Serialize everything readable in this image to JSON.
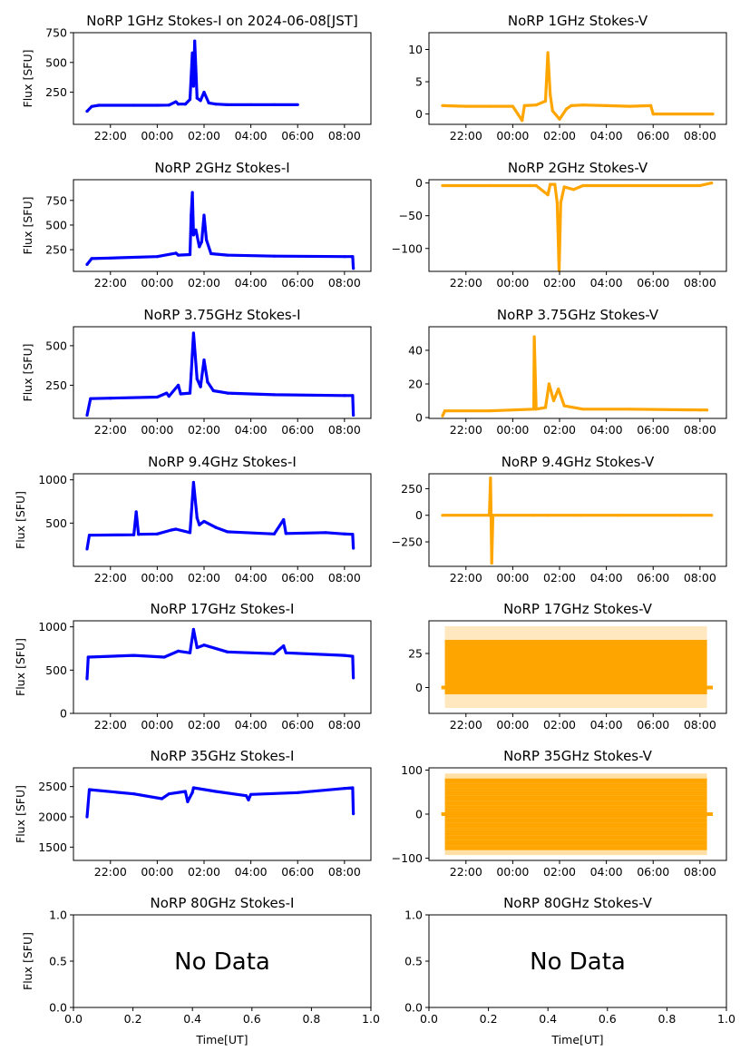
{
  "figure": {
    "date_label": "2024-06-08[JST]",
    "xlabel": "Time[UT]",
    "ylabel": "Flux [SFU]",
    "no_data_text": "No Data",
    "colors": {
      "stokes_i": "#0000ff",
      "stokes_v": "#ffa500",
      "axes": "#000000",
      "background": "#ffffff"
    }
  },
  "chart_data": [
    {
      "type": "scatter",
      "id": "i1",
      "title": "NoRP 1GHz Stokes-I on 2024-06-08[JST]",
      "ylabel": "Flux [SFU]",
      "xlabel": "",
      "xlim": [
        -3.58,
        9.13
      ],
      "ylim": [
        -20,
        750
      ],
      "yticks": [
        250,
        500,
        750
      ],
      "xticks": [
        "22:00",
        "00:00",
        "02:00",
        "04:00",
        "06:00",
        "08:00"
      ],
      "points": [
        [
          -3.0,
          90
        ],
        [
          -2.8,
          130
        ],
        [
          -2.5,
          140
        ],
        [
          -1,
          140
        ],
        [
          0,
          140
        ],
        [
          0.5,
          142
        ],
        [
          0.8,
          170
        ],
        [
          0.9,
          150
        ],
        [
          1.2,
          150
        ],
        [
          1.4,
          190
        ],
        [
          1.5,
          580
        ],
        [
          1.55,
          300
        ],
        [
          1.6,
          680
        ],
        [
          1.7,
          200
        ],
        [
          1.85,
          180
        ],
        [
          2.0,
          250
        ],
        [
          2.2,
          160
        ],
        [
          2.5,
          150
        ],
        [
          3,
          145
        ],
        [
          4,
          145
        ],
        [
          5,
          145
        ],
        [
          6.0,
          145
        ]
      ]
    },
    {
      "type": "scatter",
      "id": "v1",
      "title": "NoRP 1GHz Stokes-V",
      "ylabel": "",
      "xlabel": "",
      "xlim": [
        -3.58,
        9.13
      ],
      "ylim": [
        -1.6,
        12.6
      ],
      "yticks": [
        0,
        5,
        10
      ],
      "xticks": [
        "22:00",
        "00:00",
        "02:00",
        "04:00",
        "06:00",
        "08:00"
      ],
      "points": [
        [
          -3.0,
          1.3
        ],
        [
          -2,
          1.2
        ],
        [
          -1,
          1.2
        ],
        [
          0,
          1.2
        ],
        [
          0.4,
          -1
        ],
        [
          0.5,
          1.3
        ],
        [
          1.0,
          1.4
        ],
        [
          1.4,
          2
        ],
        [
          1.5,
          9.5
        ],
        [
          1.6,
          3
        ],
        [
          1.7,
          0.5
        ],
        [
          2.0,
          -0.8
        ],
        [
          2.3,
          0.8
        ],
        [
          2.5,
          1.3
        ],
        [
          3,
          1.4
        ],
        [
          4,
          1.3
        ],
        [
          5,
          1.2
        ],
        [
          5.9,
          1.3
        ],
        [
          6.0,
          0
        ],
        [
          8.55,
          0
        ]
      ]
    },
    {
      "type": "scatter",
      "id": "i2",
      "title": "NoRP 2GHz Stokes-I",
      "ylabel": "Flux [SFU]",
      "xlabel": "",
      "xlim": [
        -3.58,
        9.13
      ],
      "ylim": [
        30,
        960
      ],
      "yticks": [
        250,
        500,
        750
      ],
      "xticks": [
        "22:00",
        "00:00",
        "02:00",
        "04:00",
        "06:00",
        "08:00"
      ],
      "points": [
        [
          -3.0,
          100
        ],
        [
          -2.8,
          160
        ],
        [
          -2,
          165
        ],
        [
          0,
          180
        ],
        [
          0.8,
          215
        ],
        [
          0.9,
          195
        ],
        [
          1.4,
          200
        ],
        [
          1.45,
          600
        ],
        [
          1.5,
          830
        ],
        [
          1.55,
          400
        ],
        [
          1.65,
          450
        ],
        [
          1.8,
          280
        ],
        [
          1.9,
          330
        ],
        [
          2.0,
          600
        ],
        [
          2.1,
          350
        ],
        [
          2.3,
          210
        ],
        [
          3,
          195
        ],
        [
          5,
          185
        ],
        [
          8,
          180
        ],
        [
          8.35,
          180
        ],
        [
          8.38,
          60
        ]
      ]
    },
    {
      "type": "scatter",
      "id": "v2",
      "title": "NoRP 2GHz Stokes-V",
      "ylabel": "",
      "xlabel": "",
      "xlim": [
        -3.58,
        9.13
      ],
      "ylim": [
        -135,
        5
      ],
      "yticks": [
        0,
        -50,
        -100
      ],
      "xticks": [
        "22:00",
        "00:00",
        "02:00",
        "04:00",
        "06:00",
        "08:00"
      ],
      "points": [
        [
          -3.0,
          -4
        ],
        [
          -1,
          -4
        ],
        [
          1.0,
          -4
        ],
        [
          1.5,
          -18
        ],
        [
          1.6,
          -2
        ],
        [
          1.8,
          -2
        ],
        [
          1.9,
          -30
        ],
        [
          1.98,
          -135
        ],
        [
          2.05,
          -30
        ],
        [
          2.2,
          -6
        ],
        [
          2.6,
          -10
        ],
        [
          3,
          -4
        ],
        [
          5,
          -4
        ],
        [
          8,
          -4
        ],
        [
          8.5,
          0
        ]
      ]
    },
    {
      "type": "scatter",
      "id": "i3",
      "title": "NoRP 3.75GHz Stokes-I",
      "ylabel": "Flux [SFU]",
      "xlabel": "",
      "xlim": [
        -3.58,
        9.13
      ],
      "ylim": [
        40,
        620
      ],
      "yticks": [
        250,
        500
      ],
      "xticks": [
        "22:00",
        "00:00",
        "02:00",
        "04:00",
        "06:00",
        "08:00"
      ],
      "points": [
        [
          -3.0,
          60
        ],
        [
          -2.85,
          165
        ],
        [
          -2,
          168
        ],
        [
          0,
          175
        ],
        [
          0.4,
          200
        ],
        [
          0.5,
          180
        ],
        [
          0.9,
          250
        ],
        [
          1.0,
          195
        ],
        [
          1.4,
          200
        ],
        [
          1.45,
          320
        ],
        [
          1.55,
          580
        ],
        [
          1.7,
          290
        ],
        [
          1.85,
          240
        ],
        [
          2.0,
          410
        ],
        [
          2.15,
          270
        ],
        [
          2.4,
          215
        ],
        [
          3,
          200
        ],
        [
          5,
          190
        ],
        [
          8,
          185
        ],
        [
          8.35,
          185
        ],
        [
          8.38,
          60
        ]
      ]
    },
    {
      "type": "scatter",
      "id": "v3",
      "title": "NoRP 3.75GHz Stokes-V",
      "ylabel": "",
      "xlabel": "",
      "xlim": [
        -3.58,
        9.13
      ],
      "ylim": [
        -0.5,
        54
      ],
      "yticks": [
        0,
        20,
        40
      ],
      "xticks": [
        "22:00",
        "00:00",
        "02:00",
        "04:00",
        "06:00",
        "08:00"
      ],
      "points": [
        [
          -3.0,
          1
        ],
        [
          -2.9,
          4
        ],
        [
          -1,
          4
        ],
        [
          0.9,
          5
        ],
        [
          0.92,
          48
        ],
        [
          1.0,
          5
        ],
        [
          1.4,
          6
        ],
        [
          1.55,
          20
        ],
        [
          1.75,
          10
        ],
        [
          1.95,
          17
        ],
        [
          2.2,
          7
        ],
        [
          3,
          5
        ],
        [
          5,
          5
        ],
        [
          8,
          4.5
        ],
        [
          8.3,
          4.5
        ]
      ]
    },
    {
      "type": "scatter",
      "id": "i4",
      "title": "NoRP 9.4GHz Stokes-I",
      "ylabel": "Flux [SFU]",
      "xlabel": "",
      "xlim": [
        -3.58,
        9.13
      ],
      "ylim": [
        0,
        1070
      ],
      "yticks": [
        500,
        1000
      ],
      "xticks": [
        "22:00",
        "00:00",
        "02:00",
        "04:00",
        "06:00",
        "08:00"
      ],
      "points": [
        [
          -3.0,
          200
        ],
        [
          -2.9,
          360
        ],
        [
          -1,
          365
        ],
        [
          -0.9,
          630
        ],
        [
          -0.8,
          370
        ],
        [
          0,
          375
        ],
        [
          0.6,
          420
        ],
        [
          0.8,
          430
        ],
        [
          1.4,
          390
        ],
        [
          1.55,
          970
        ],
        [
          1.7,
          560
        ],
        [
          1.8,
          480
        ],
        [
          2.0,
          520
        ],
        [
          2.5,
          450
        ],
        [
          3,
          400
        ],
        [
          5,
          375
        ],
        [
          5.4,
          540
        ],
        [
          5.5,
          380
        ],
        [
          7.2,
          390
        ],
        [
          8,
          375
        ],
        [
          8.35,
          370
        ],
        [
          8.38,
          210
        ]
      ]
    },
    {
      "type": "scatter",
      "id": "v4",
      "title": "NoRP 9.4GHz Stokes-V",
      "ylabel": "",
      "xlabel": "",
      "xlim": [
        -3.58,
        9.13
      ],
      "ylim": [
        -480,
        390
      ],
      "yticks": [
        250,
        0,
        -250
      ],
      "xticks": [
        "22:00",
        "00:00",
        "02:00",
        "04:00",
        "06:00",
        "08:00"
      ],
      "points": [
        [
          -3.0,
          0
        ],
        [
          -1.0,
          0
        ],
        [
          -0.95,
          350
        ],
        [
          -0.9,
          -450
        ],
        [
          -0.85,
          0
        ],
        [
          0.9,
          0
        ],
        [
          1.5,
          0
        ],
        [
          2.9,
          0
        ],
        [
          4.5,
          0
        ],
        [
          7.2,
          0
        ],
        [
          8.5,
          0
        ]
      ]
    },
    {
      "type": "scatter",
      "id": "i5",
      "title": "NoRP 17GHz Stokes-I",
      "ylabel": "Flux [SFU]",
      "xlabel": "",
      "xlim": [
        -3.58,
        9.13
      ],
      "ylim": [
        0,
        1070
      ],
      "yticks": [
        0,
        500,
        1000
      ],
      "xticks": [
        "22:00",
        "00:00",
        "02:00",
        "04:00",
        "06:00",
        "08:00"
      ],
      "points": [
        [
          -3.0,
          400
        ],
        [
          -2.95,
          650
        ],
        [
          -1,
          670
        ],
        [
          0.3,
          650
        ],
        [
          0.9,
          720
        ],
        [
          1.4,
          700
        ],
        [
          1.55,
          970
        ],
        [
          1.7,
          760
        ],
        [
          2.0,
          790
        ],
        [
          3,
          710
        ],
        [
          5,
          690
        ],
        [
          5.4,
          780
        ],
        [
          5.5,
          700
        ],
        [
          8,
          670
        ],
        [
          8.35,
          660
        ],
        [
          8.38,
          410
        ]
      ]
    },
    {
      "type": "scatter",
      "id": "v5",
      "title": "NoRP 17GHz Stokes-V",
      "ylabel": "",
      "xlabel": "",
      "xlim": [
        -3.58,
        9.13
      ],
      "ylim": [
        -19,
        49
      ],
      "yticks": [
        0,
        25
      ],
      "xticks": [
        "22:00",
        "00:00",
        "02:00",
        "04:00",
        "06:00",
        "08:00"
      ],
      "band": {
        "x": [
          -2.9,
          8.3
        ],
        "core": [
          -5,
          35
        ],
        "scatter": [
          -15,
          45
        ],
        "baseline": 0
      }
    },
    {
      "type": "scatter",
      "id": "i6",
      "title": "NoRP 35GHz Stokes-I",
      "ylabel": "Flux [SFU]",
      "xlabel": "",
      "xlim": [
        -3.58,
        9.13
      ],
      "ylim": [
        1280,
        2810
      ],
      "yticks": [
        1500,
        2000,
        2500
      ],
      "xticks": [
        "22:00",
        "00:00",
        "02:00",
        "04:00",
        "06:00",
        "08:00"
      ],
      "points": [
        [
          -3.0,
          2000
        ],
        [
          -2.9,
          2450
        ],
        [
          -1,
          2380
        ],
        [
          0.2,
          2300
        ],
        [
          0.5,
          2380
        ],
        [
          1.2,
          2420
        ],
        [
          1.3,
          2250
        ],
        [
          1.5,
          2400
        ],
        [
          1.55,
          2480
        ],
        [
          2.5,
          2420
        ],
        [
          3.8,
          2350
        ],
        [
          3.9,
          2280
        ],
        [
          4,
          2370
        ],
        [
          6,
          2400
        ],
        [
          8,
          2470
        ],
        [
          8.35,
          2480
        ],
        [
          8.38,
          2050
        ]
      ]
    },
    {
      "type": "scatter",
      "id": "v6",
      "title": "NoRP 35GHz Stokes-V",
      "ylabel": "",
      "xlabel": "",
      "xlim": [
        -3.58,
        9.13
      ],
      "ylim": [
        -105,
        105
      ],
      "yticks": [
        100,
        0,
        -100
      ],
      "xticks": [
        "22:00",
        "00:00",
        "02:00",
        "04:00",
        "06:00",
        "08:00"
      ],
      "band": {
        "x": [
          -2.9,
          8.3
        ],
        "level_step": 5.6,
        "max_level": 90,
        "baseline": 0
      }
    },
    {
      "type": "scatter",
      "id": "i7",
      "title": "NoRP 80GHz Stokes-I",
      "ylabel": "Flux [SFU]",
      "xlabel": "Time[UT]",
      "xlim": [
        0,
        1
      ],
      "ylim": [
        0,
        1
      ],
      "yticks": [
        0.0,
        0.5,
        1.0
      ],
      "xticks": [
        "0.0",
        "0.2",
        "0.4",
        "0.6",
        "0.8",
        "1.0"
      ],
      "ytick_labels": [
        "0.0",
        "0.5",
        "1.0"
      ],
      "annotation": "No Data",
      "points": []
    },
    {
      "type": "scatter",
      "id": "v7",
      "title": "NoRP 80GHz Stokes-V",
      "ylabel": "",
      "xlabel": "Time[UT]",
      "xlim": [
        0,
        1
      ],
      "ylim": [
        0,
        1
      ],
      "yticks": [
        0.0,
        0.5,
        1.0
      ],
      "xticks": [
        "0.0",
        "0.2",
        "0.4",
        "0.6",
        "0.8",
        "1.0"
      ],
      "ytick_labels": [
        "0.0",
        "0.5",
        "1.0"
      ],
      "annotation": "No Data",
      "points": []
    }
  ]
}
